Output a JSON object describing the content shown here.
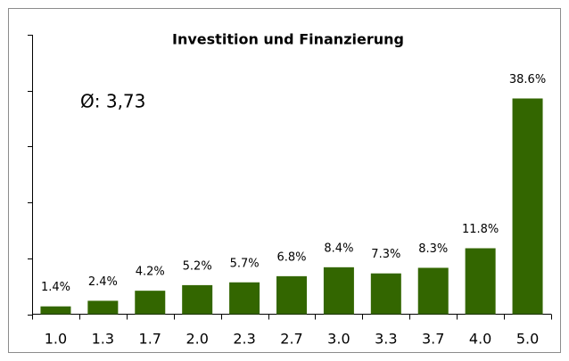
{
  "chart_data": {
    "type": "bar",
    "title": "Investition und Finanzierung",
    "annotation": "Ø: 3,73",
    "categories": [
      "1.0",
      "1.3",
      "1.7",
      "2.0",
      "2.3",
      "2.7",
      "3.0",
      "3.3",
      "3.7",
      "4.0",
      "5.0"
    ],
    "values": [
      1.4,
      2.4,
      4.2,
      5.2,
      5.7,
      6.8,
      8.4,
      7.3,
      8.3,
      11.8,
      38.6
    ],
    "value_labels": [
      "1.4%",
      "2.4%",
      "4.2%",
      "5.2%",
      "5.7%",
      "6.8%",
      "8.4%",
      "7.3%",
      "8.3%",
      "11.8%",
      "38.6%"
    ],
    "color": "#336600",
    "ylim": [
      0,
      50
    ],
    "yticks": [
      0,
      10,
      20,
      30,
      40,
      50
    ],
    "grid": false
  }
}
